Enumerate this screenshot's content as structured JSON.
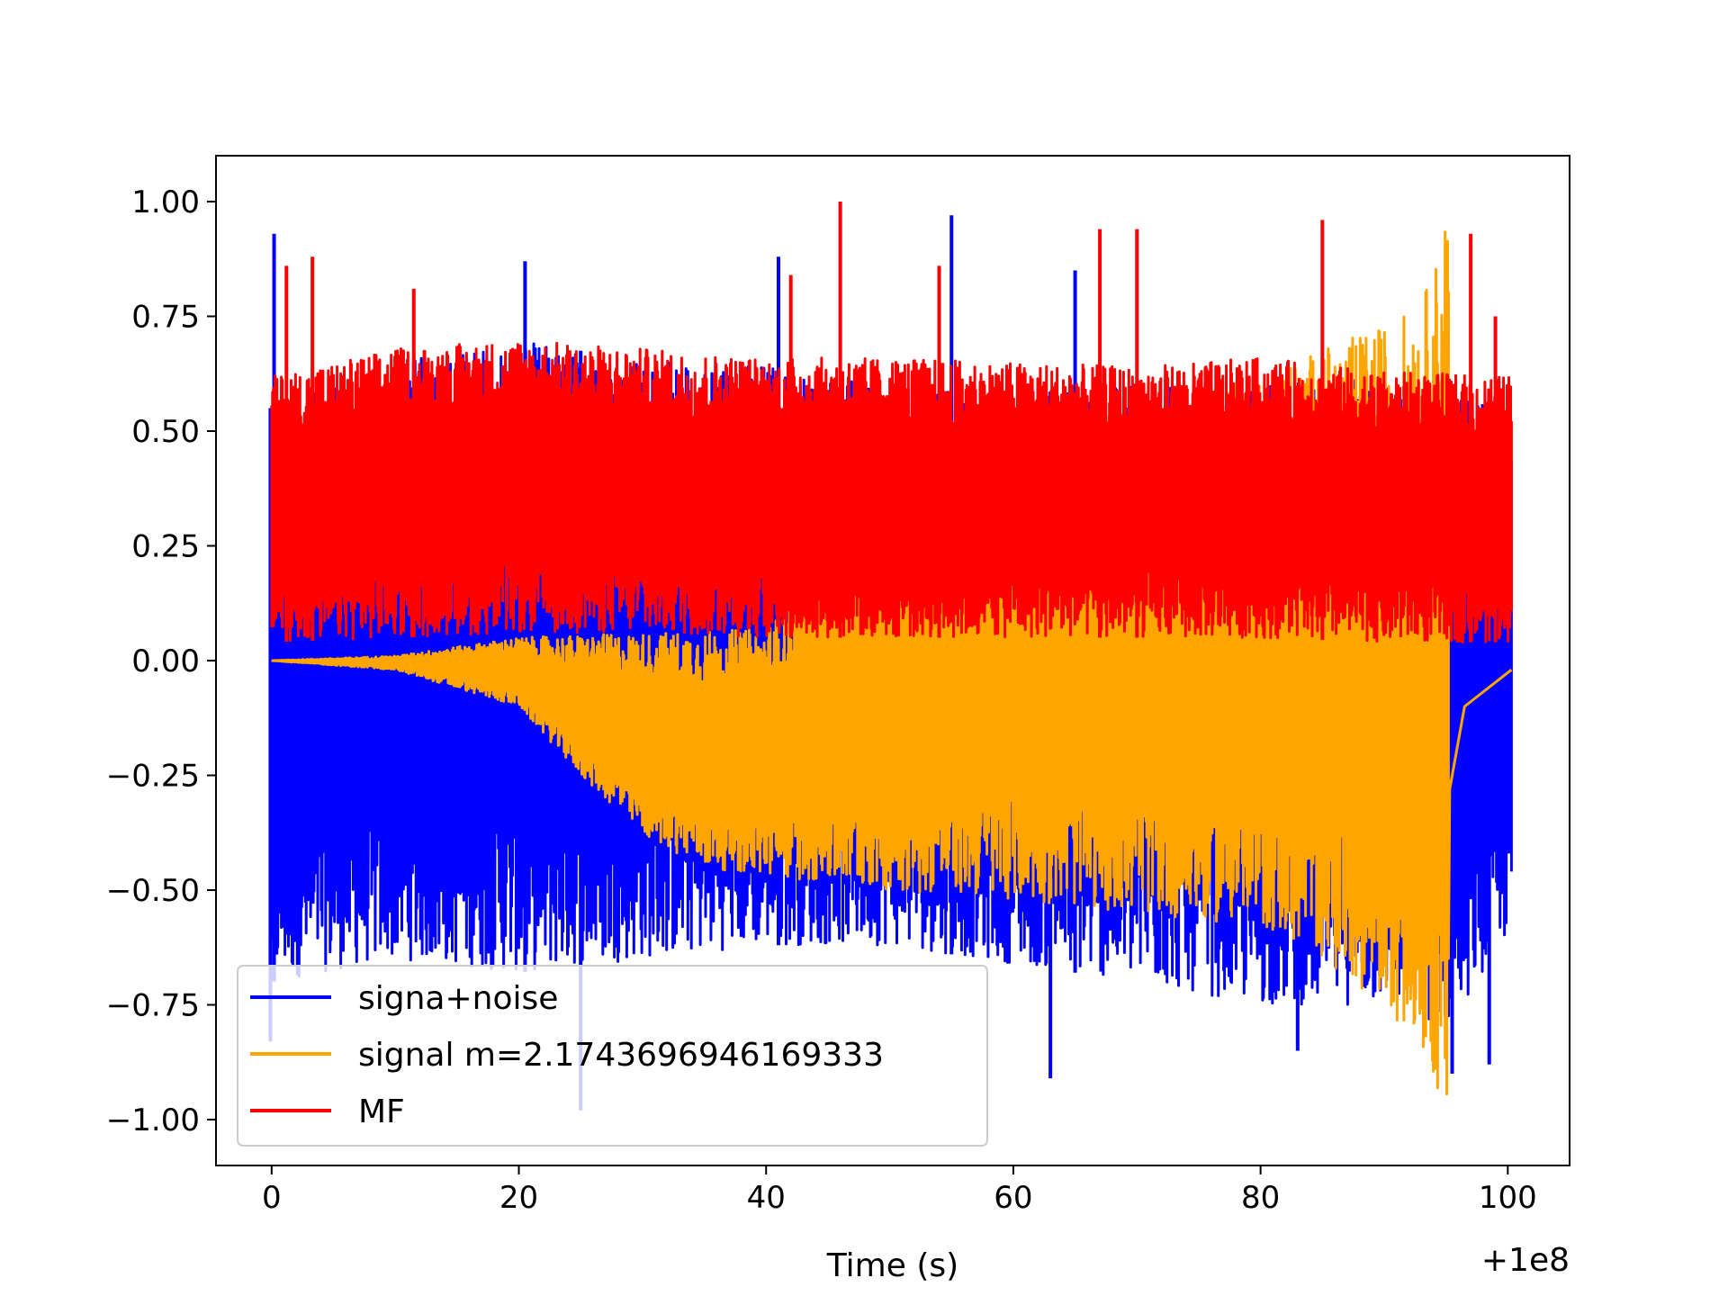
{
  "chart_data": {
    "type": "line",
    "title": "",
    "xlabel": "Time (s)",
    "ylabel": "",
    "x_offset_label": "+1e8",
    "xlim": [
      -4.5,
      105
    ],
    "ylim": [
      -1.1,
      1.1
    ],
    "x_ticks": [
      0,
      20,
      40,
      60,
      80,
      100
    ],
    "x_tick_labels": [
      "0",
      "20",
      "40",
      "60",
      "80",
      "100"
    ],
    "y_ticks": [
      1.0,
      0.75,
      0.5,
      0.25,
      0.0,
      -0.25,
      -0.5,
      -0.75,
      -1.0
    ],
    "y_tick_labels": [
      "1.00",
      "0.75",
      "0.50",
      "0.25",
      "0.00",
      "−0.25",
      "−0.50",
      "−0.75",
      "−1.00"
    ],
    "grid": false,
    "legend_position": "lower-left",
    "series": [
      {
        "name": "signa+noise",
        "color": "#0000ff",
        "x_range": [
          0,
          100.3
        ],
        "upper_envelope": [
          [
            0,
            0.55
          ],
          [
            10,
            0.65
          ],
          [
            20,
            0.7
          ],
          [
            30,
            0.65
          ],
          [
            40,
            0.65
          ],
          [
            50,
            0.6
          ],
          [
            60,
            0.58
          ],
          [
            70,
            0.6
          ],
          [
            80,
            0.6
          ],
          [
            90,
            0.62
          ],
          [
            100,
            0.55
          ]
        ],
        "lower_envelope": [
          [
            0,
            -0.7
          ],
          [
            10,
            -0.65
          ],
          [
            20,
            -0.68
          ],
          [
            30,
            -0.65
          ],
          [
            40,
            -0.62
          ],
          [
            50,
            -0.62
          ],
          [
            60,
            -0.66
          ],
          [
            70,
            -0.7
          ],
          [
            80,
            -0.75
          ],
          [
            90,
            -0.75
          ],
          [
            95,
            -0.8
          ],
          [
            100,
            -0.6
          ]
        ],
        "peaks": [
          [
            0.2,
            0.93
          ],
          [
            20.5,
            0.87
          ],
          [
            41,
            0.88
          ],
          [
            55,
            0.97
          ],
          [
            65,
            0.85
          ],
          [
            -0.1,
            -0.83
          ],
          [
            25,
            -0.98
          ],
          [
            63,
            -0.91
          ],
          [
            83,
            -0.85
          ],
          [
            95.5,
            -0.9
          ],
          [
            98.5,
            -0.88
          ]
        ]
      },
      {
        "name": "signal m=2.1743696946169333",
        "color": "#ffa500",
        "x_range": [
          0,
          95.2
        ],
        "upper_envelope": [
          [
            0,
            0.0
          ],
          [
            10,
            0.01
          ],
          [
            20,
            0.05
          ],
          [
            30,
            0.06
          ],
          [
            40,
            0.07
          ],
          [
            50,
            0.36
          ],
          [
            60,
            0.5
          ],
          [
            70,
            0.55
          ],
          [
            80,
            0.62
          ],
          [
            85,
            0.68
          ],
          [
            90,
            0.73
          ],
          [
            93,
            0.78
          ],
          [
            94.5,
            0.9
          ],
          [
            95,
            1.0
          ]
        ],
        "lower_envelope": [
          [
            0,
            0.0
          ],
          [
            10,
            -0.02
          ],
          [
            20,
            -0.1
          ],
          [
            25,
            -0.25
          ],
          [
            30,
            -0.38
          ],
          [
            35,
            -0.45
          ],
          [
            40,
            -0.47
          ],
          [
            50,
            -0.5
          ],
          [
            60,
            -0.52
          ],
          [
            70,
            -0.55
          ],
          [
            80,
            -0.58
          ],
          [
            85,
            -0.65
          ],
          [
            90,
            -0.75
          ],
          [
            93,
            -0.85
          ],
          [
            95,
            -1.0
          ]
        ],
        "tail": [
          [
            95.3,
            -0.28
          ],
          [
            96.5,
            -0.1
          ],
          [
            100.3,
            -0.02
          ]
        ]
      },
      {
        "name": "MF",
        "color": "#ff0000",
        "x_range": [
          0,
          100.3
        ],
        "upper_envelope": [
          [
            0,
            0.62
          ],
          [
            10,
            0.68
          ],
          [
            20,
            0.7
          ],
          [
            30,
            0.68
          ],
          [
            40,
            0.66
          ],
          [
            50,
            0.66
          ],
          [
            60,
            0.65
          ],
          [
            70,
            0.64
          ],
          [
            80,
            0.66
          ],
          [
            90,
            0.63
          ],
          [
            100,
            0.62
          ]
        ],
        "lower_envelope": [
          [
            0,
            0.04
          ],
          [
            10,
            0.05
          ],
          [
            20,
            0.06
          ],
          [
            30,
            0.06
          ],
          [
            40,
            0.05
          ],
          [
            50,
            0.05
          ],
          [
            60,
            0.05
          ],
          [
            70,
            0.05
          ],
          [
            80,
            0.05
          ],
          [
            90,
            0.04
          ],
          [
            100,
            0.04
          ]
        ],
        "peaks": [
          [
            46,
            1.0
          ],
          [
            1.2,
            0.86
          ],
          [
            3.3,
            0.88
          ],
          [
            11.5,
            0.81
          ],
          [
            42,
            0.84
          ],
          [
            54,
            0.86
          ],
          [
            67,
            0.94
          ],
          [
            70,
            0.94
          ],
          [
            85,
            0.96
          ],
          [
            97,
            0.93
          ],
          [
            99,
            0.75
          ]
        ]
      }
    ]
  }
}
